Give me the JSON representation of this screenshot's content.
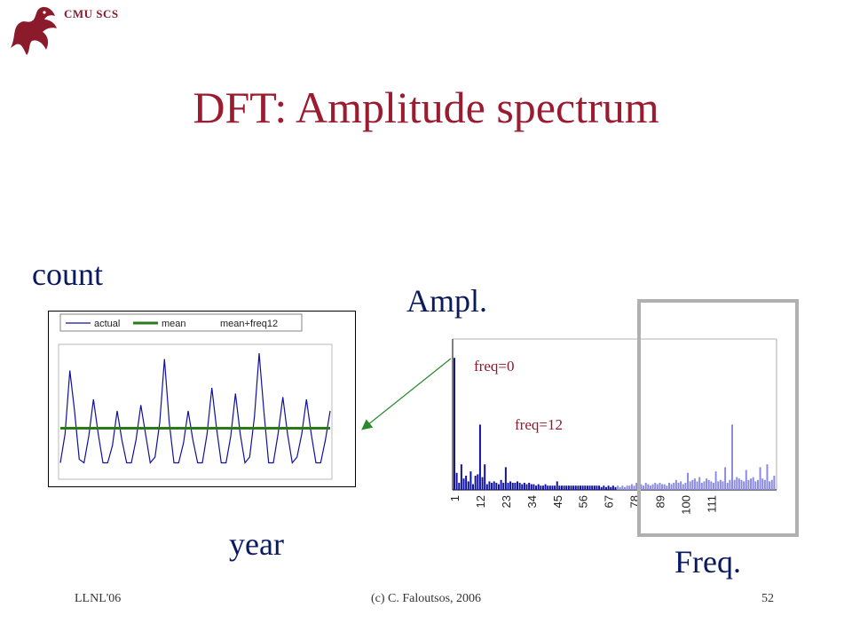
{
  "header": {
    "brand": "CMU SCS"
  },
  "slide": {
    "title": "DFT: Amplitude spectrum",
    "count_label": "count",
    "ampl_label": "Ampl.",
    "year_label": "year",
    "freq_label": "Freq."
  },
  "footer": {
    "left": "LLNL'06",
    "center": "(c) C. Faloutsos, 2006",
    "page": "52"
  },
  "colors": {
    "title": "#9b1b30",
    "label": "#0a1a60",
    "annotation": "#8b1a2b",
    "bar_low": "#1010a0",
    "bar_high": "#8a8ae0",
    "mean_line": "#2a7a1a",
    "highlight_box": "#b0b0b0",
    "arrow": "#2a8a2a"
  },
  "chart_data": [
    {
      "type": "line",
      "legend": [
        "actual",
        "mean",
        "mean+freq12"
      ],
      "legend_placement": "top",
      "mean": 0.35,
      "ylim": [
        0,
        1
      ],
      "series": [
        {
          "name": "actual",
          "values": [
            0.05,
            0.3,
            0.85,
            0.5,
            0.08,
            0.05,
            0.28,
            0.6,
            0.3,
            0.05,
            0.05,
            0.2,
            0.5,
            0.25,
            0.05,
            0.05,
            0.25,
            0.55,
            0.3,
            0.05,
            0.1,
            0.4,
            0.95,
            0.4,
            0.05,
            0.05,
            0.22,
            0.5,
            0.25,
            0.05,
            0.05,
            0.3,
            0.7,
            0.35,
            0.05,
            0.05,
            0.28,
            0.65,
            0.3,
            0.05,
            0.1,
            0.45,
            1.0,
            0.5,
            0.05,
            0.05,
            0.3,
            0.62,
            0.3,
            0.05,
            0.1,
            0.3,
            0.6,
            0.3,
            0.05,
            0.05,
            0.25,
            0.5
          ]
        }
      ]
    },
    {
      "type": "bar",
      "x_tick_labels": [
        "1",
        "12",
        "23",
        "34",
        "45",
        "56",
        "67",
        "78",
        "89",
        "100",
        "111"
      ],
      "annotations": [
        "freq=0",
        "freq=12"
      ],
      "ylim": [
        0,
        1
      ],
      "values": [
        0.93,
        0.12,
        0.05,
        0.18,
        0.08,
        0.1,
        0.06,
        0.13,
        0.04,
        0.1,
        0.11,
        0.46,
        0.09,
        0.18,
        0.04,
        0.06,
        0.05,
        0.06,
        0.05,
        0.04,
        0.07,
        0.05,
        0.16,
        0.05,
        0.06,
        0.05,
        0.05,
        0.06,
        0.05,
        0.04,
        0.05,
        0.04,
        0.05,
        0.04,
        0.04,
        0.03,
        0.04,
        0.03,
        0.03,
        0.04,
        0.03,
        0.03,
        0.03,
        0.03,
        0.06,
        0.03,
        0.03,
        0.03,
        0.03,
        0.03,
        0.03,
        0.03,
        0.03,
        0.03,
        0.03,
        0.03,
        0.03,
        0.03,
        0.03,
        0.03,
        0.03,
        0.03,
        0.03,
        0.02,
        0.03,
        0.02,
        0.03,
        0.02,
        0.03,
        0.02,
        0.03,
        0.02,
        0.03,
        0.02,
        0.03,
        0.03,
        0.04,
        0.03,
        0.05,
        0.03,
        0.04,
        0.03,
        0.05,
        0.04,
        0.03,
        0.04,
        0.05,
        0.04,
        0.05,
        0.04,
        0.04,
        0.03,
        0.05,
        0.04,
        0.05,
        0.07,
        0.05,
        0.06,
        0.04,
        0.05,
        0.12,
        0.06,
        0.07,
        0.08,
        0.06,
        0.09,
        0.05,
        0.06,
        0.08,
        0.07,
        0.06,
        0.05,
        0.13,
        0.06,
        0.07,
        0.06,
        0.16,
        0.05,
        0.07,
        0.46,
        0.07,
        0.09,
        0.08,
        0.07,
        0.06,
        0.14,
        0.07,
        0.08,
        0.09,
        0.06,
        0.07,
        0.16,
        0.08,
        0.07,
        0.18,
        0.06,
        0.07,
        0.1
      ]
    }
  ]
}
